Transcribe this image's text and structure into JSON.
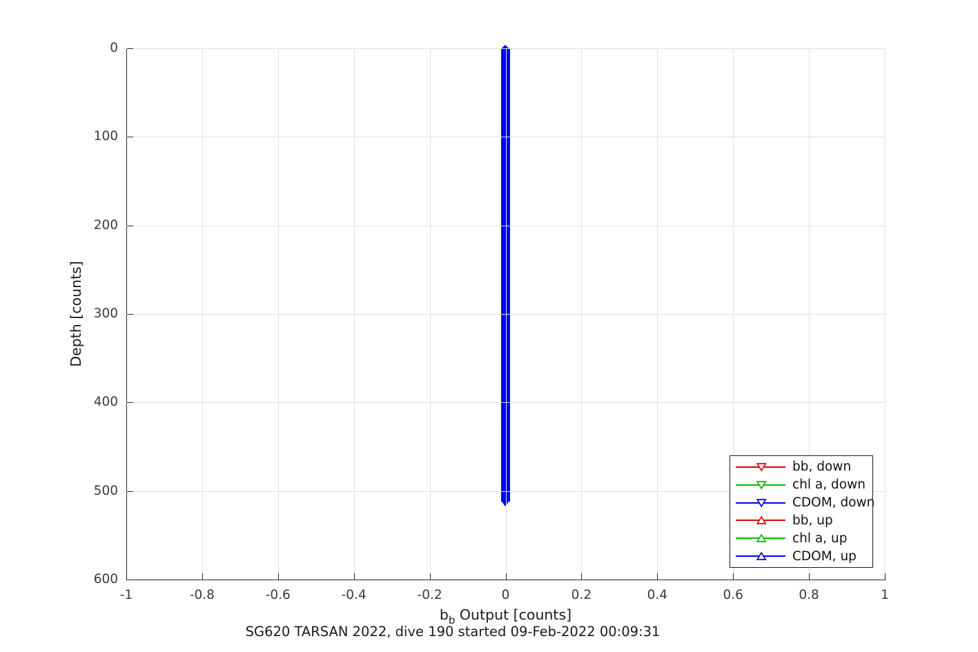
{
  "figure": {
    "bottom_title": "SG620 TARSAN 2022, dive 190 started 09-Feb-2022 00:09:31",
    "xlabel_base": "b",
    "xlabel_sub": "b",
    "xlabel_rest": " Output [counts]",
    "ylabel": "Depth [counts]"
  },
  "axes": {
    "xlim": [
      -1,
      1
    ],
    "ylim": [
      0,
      600
    ],
    "y_direction": "reverse",
    "grid": "on",
    "xticks": [
      {
        "v": -1,
        "label": "-1"
      },
      {
        "v": -0.8,
        "label": "-0.8"
      },
      {
        "v": -0.6,
        "label": "-0.6"
      },
      {
        "v": -0.4,
        "label": "-0.4"
      },
      {
        "v": -0.2,
        "label": "-0.2"
      },
      {
        "v": 0,
        "label": "0"
      },
      {
        "v": 0.2,
        "label": "0.2"
      },
      {
        "v": 0.4,
        "label": "0.4"
      },
      {
        "v": 0.6,
        "label": "0.6"
      },
      {
        "v": 0.8,
        "label": "0.8"
      },
      {
        "v": 1,
        "label": "1"
      }
    ],
    "yticks": [
      {
        "v": 0,
        "label": "0"
      },
      {
        "v": 100,
        "label": "100"
      },
      {
        "v": 200,
        "label": "200"
      },
      {
        "v": 300,
        "label": "300"
      },
      {
        "v": 400,
        "label": "400"
      },
      {
        "v": 500,
        "label": "500"
      },
      {
        "v": 600,
        "label": "600"
      }
    ]
  },
  "chart_data": {
    "type": "line",
    "title": "SG620 TARSAN 2022, dive 190 started 09-Feb-2022 00:09:31",
    "xlabel": "b_b Output [counts]",
    "ylabel": "Depth [counts]",
    "xlim": [
      -1,
      1
    ],
    "ylim": [
      0,
      600
    ],
    "ydir": "reverse",
    "grid": "on",
    "legend_position": "southeast",
    "series": [
      {
        "name": "bb, down",
        "color": "#e00000",
        "marker": "triangle-down",
        "x_value": 0,
        "depth_range": [
          0,
          512
        ],
        "note": "occluded by later series"
      },
      {
        "name": "chl a, down",
        "color": "#00bf00",
        "marker": "triangle-down",
        "x_value": 0,
        "depth_range": [
          0,
          512
        ],
        "note": "occluded by later series"
      },
      {
        "name": "CDOM, down",
        "color": "#0000f2",
        "marker": "triangle-down",
        "x_value": 0,
        "depth_range": [
          0,
          512
        ],
        "note": "visible as vertical band at 0"
      },
      {
        "name": "bb, up",
        "color": "#e00000",
        "marker": "triangle-up",
        "x_value": 0,
        "depth_range": [
          0,
          512
        ],
        "note": "occluded by later series"
      },
      {
        "name": "chl a, up",
        "color": "#00bf00",
        "marker": "triangle-up",
        "x_value": 0,
        "depth_range": [
          0,
          512
        ],
        "note": "occluded by later series"
      },
      {
        "name": "CDOM, up",
        "color": "#0000f2",
        "marker": "triangle-up",
        "x_value": 0,
        "depth_range": [
          0,
          512
        ],
        "note": "visible as vertical band at 0"
      }
    ],
    "visible_profile": {
      "x_center": 0,
      "x_spread": 0.012,
      "depth_top": 0,
      "depth_bottom": 512,
      "color": "#0000f2",
      "edge_color": "#0a0ad0"
    }
  },
  "legend": {
    "entries": [
      {
        "label": "bb, down",
        "color": "#e00000",
        "marker": "down"
      },
      {
        "label": "chl a, down",
        "color": "#00bf00",
        "marker": "down"
      },
      {
        "label": "CDOM, down",
        "color": "#0000f2",
        "marker": "down"
      },
      {
        "label": "bb, up",
        "color": "#e00000",
        "marker": "up"
      },
      {
        "label": "chl a, up",
        "color": "#00bf00",
        "marker": "up"
      },
      {
        "label": "CDOM, up",
        "color": "#0000f2",
        "marker": "up"
      }
    ]
  },
  "colors": {
    "axis": "#262626",
    "grid": "#e0e0e0",
    "background": "#ffffff"
  }
}
